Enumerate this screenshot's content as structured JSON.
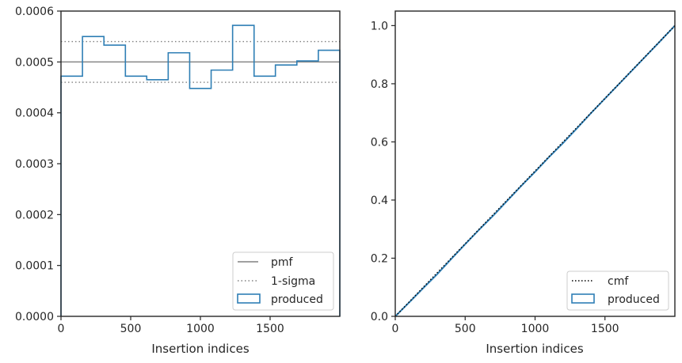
{
  "colors": {
    "produced": "#2f7fb5",
    "pmf": "#808080",
    "sigma": "#808080",
    "cmf": "#000000",
    "axes": "#262626"
  },
  "chart_data": [
    {
      "type": "line",
      "xlabel": "Insertion indices",
      "ylabel": "",
      "xlim": [
        0,
        2000
      ],
      "ylim": [
        0,
        0.0006
      ],
      "xticks": [
        "0",
        "500",
        "1000",
        "1500"
      ],
      "yticks": [
        "0.0000",
        "0.0001",
        "0.0002",
        "0.0003",
        "0.0004",
        "0.0005",
        "0.0006"
      ],
      "grid": false,
      "legend": {
        "placement": "lower-right",
        "entries": [
          "pmf",
          "1-sigma",
          "produced"
        ]
      },
      "pmf": 0.0005,
      "sigma_band": [
        0.00046,
        0.00054
      ],
      "produced_histogram": {
        "bin_edges": [
          0,
          154,
          308,
          462,
          615,
          769,
          923,
          1077,
          1231,
          1385,
          1538,
          1692,
          1846,
          2000
        ],
        "values": [
          0.000472,
          0.00055,
          0.000533,
          0.000472,
          0.000465,
          0.000518,
          0.000448,
          0.000484,
          0.000572,
          0.000472,
          0.000494,
          0.000502,
          0.000523
        ]
      }
    },
    {
      "type": "line",
      "xlabel": "Insertion indices",
      "ylabel": "",
      "xlim": [
        0,
        2000
      ],
      "ylim": [
        0,
        1.05
      ],
      "xticks": [
        "0",
        "500",
        "1000",
        "1500"
      ],
      "yticks": [
        "0.0",
        "0.2",
        "0.4",
        "0.6",
        "0.8",
        "1.0"
      ],
      "grid": false,
      "legend": {
        "placement": "lower-right",
        "entries": [
          "cmf",
          "produced"
        ]
      },
      "cmf": {
        "x": [
          0,
          2000
        ],
        "y": [
          0,
          1.0
        ]
      },
      "produced": {
        "x": [
          0,
          100,
          200,
          300,
          400,
          500,
          600,
          700,
          800,
          900,
          1000,
          1100,
          1200,
          1300,
          1400,
          1500,
          1600,
          1700,
          1800,
          1900,
          2000
        ],
        "y": [
          0,
          0.048,
          0.097,
          0.145,
          0.197,
          0.248,
          0.298,
          0.346,
          0.397,
          0.448,
          0.497,
          0.548,
          0.596,
          0.647,
          0.699,
          0.749,
          0.799,
          0.849,
          0.899,
          0.949,
          1.0
        ]
      }
    }
  ]
}
